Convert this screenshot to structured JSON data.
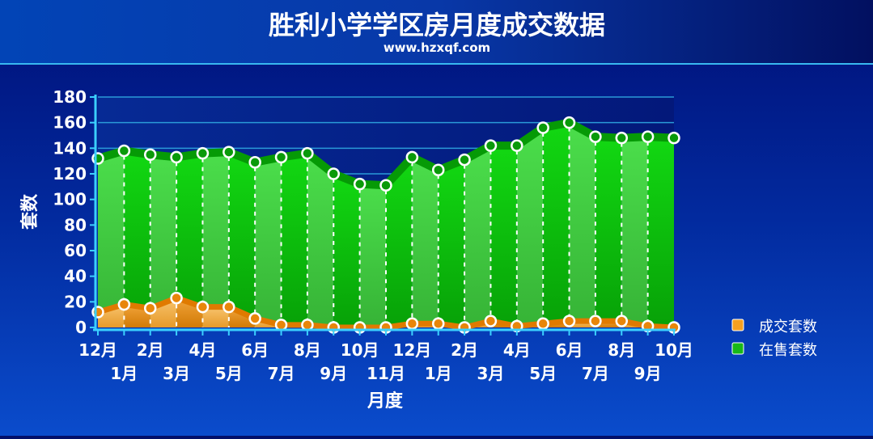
{
  "header": {
    "title": "胜利小学学区房月度成交数据",
    "subtitle": "www.hzxqf.com"
  },
  "chart_data": {
    "type": "area",
    "title": "胜利小学学区房月度成交数据",
    "subtitle": "www.hzxqf.com",
    "xlabel": "月度",
    "ylabel": "套数",
    "ylim": [
      0,
      180
    ],
    "yticks": [
      0,
      20,
      40,
      60,
      80,
      100,
      120,
      140,
      160,
      180
    ],
    "grid": true,
    "legend_position": "right",
    "categories": [
      "12月",
      "1月",
      "2月",
      "3月",
      "4月",
      "5月",
      "6月",
      "7月",
      "8月",
      "9月",
      "10月",
      "11月",
      "12月",
      "1月",
      "2月",
      "3月",
      "4月",
      "5月",
      "6月",
      "7月",
      "8月",
      "9月",
      "10月"
    ],
    "series": [
      {
        "name": "成交套数",
        "color": "#f59a10",
        "values": [
          12,
          18,
          15,
          23,
          16,
          16,
          7,
          2,
          2,
          0,
          0,
          0,
          3,
          3,
          0,
          5,
          1,
          3,
          5,
          5,
          5,
          1,
          0
        ]
      },
      {
        "name": "在售套数",
        "color": "#1ec81e",
        "values": [
          132,
          138,
          135,
          133,
          136,
          137,
          129,
          133,
          136,
          120,
          112,
          111,
          133,
          123,
          131,
          142,
          142,
          156,
          160,
          149,
          148,
          149,
          148
        ]
      }
    ]
  },
  "legend": {
    "items": [
      {
        "label": "成交套数",
        "color": "#f5a020"
      },
      {
        "label": "在售套数",
        "color": "#18b818"
      }
    ]
  },
  "colors": {
    "background_top": "#001070",
    "background_bottom": "#0a46c8",
    "text": "#ffffff"
  }
}
